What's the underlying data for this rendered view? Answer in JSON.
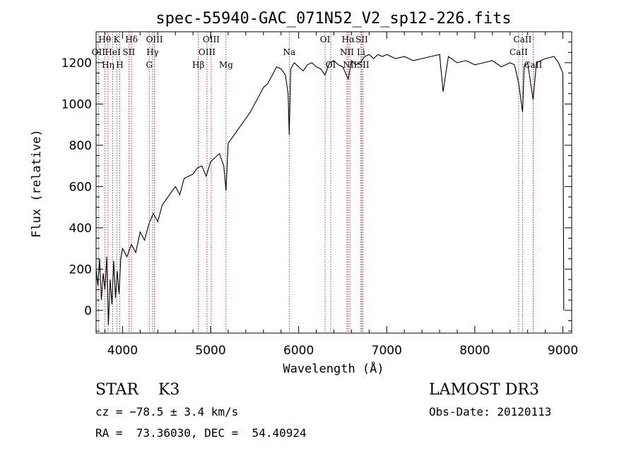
{
  "chart_data": {
    "type": "line",
    "title": "spec-55940-GAC_071N52_V2_sp12-226.fits",
    "xlabel": "Wavelength (Å)",
    "ylabel": "Flux (relative)",
    "xlim": [
      3700,
      9100
    ],
    "ylim": [
      -110,
      1350
    ],
    "xticks": [
      4000,
      5000,
      6000,
      7000,
      8000,
      9000
    ],
    "yticks": [
      0,
      200,
      400,
      600,
      800,
      1000,
      1200
    ],
    "series": [
      {
        "name": "flux",
        "x": [
          3700,
          3720,
          3740,
          3760,
          3780,
          3800,
          3820,
          3840,
          3860,
          3880,
          3900,
          3920,
          3940,
          3960,
          3980,
          4000,
          4050,
          4100,
          4150,
          4200,
          4250,
          4300,
          4350,
          4400,
          4450,
          4500,
          4550,
          4600,
          4650,
          4700,
          4750,
          4800,
          4850,
          4900,
          4950,
          5000,
          5050,
          5100,
          5150,
          5175,
          5200,
          5250,
          5300,
          5350,
          5400,
          5450,
          5500,
          5550,
          5600,
          5650,
          5700,
          5750,
          5800,
          5850,
          5880,
          5893,
          5910,
          5950,
          6000,
          6050,
          6100,
          6150,
          6200,
          6250,
          6300,
          6350,
          6400,
          6450,
          6500,
          6563,
          6600,
          6650,
          6700,
          6750,
          6800,
          6850,
          6900,
          6950,
          7000,
          7100,
          7200,
          7300,
          7400,
          7500,
          7600,
          7640,
          7700,
          7800,
          7900,
          8000,
          8100,
          8200,
          8300,
          8400,
          8450,
          8498,
          8542,
          8560,
          8600,
          8662,
          8700,
          8800,
          8900,
          8950,
          9000,
          9010
        ],
        "values": [
          200,
          120,
          250,
          50,
          180,
          100,
          260,
          -70,
          150,
          30,
          240,
          60,
          190,
          80,
          250,
          300,
          260,
          320,
          280,
          380,
          340,
          420,
          470,
          430,
          510,
          540,
          570,
          600,
          560,
          640,
          650,
          660,
          690,
          700,
          650,
          720,
          740,
          760,
          700,
          580,
          810,
          840,
          870,
          900,
          930,
          960,
          1000,
          1040,
          1080,
          1100,
          1140,
          1180,
          1170,
          1140,
          1050,
          850,
          1170,
          1200,
          1180,
          1160,
          1190,
          1200,
          1180,
          1170,
          1140,
          1200,
          1210,
          1190,
          1180,
          1120,
          1210,
          1190,
          1200,
          1230,
          1240,
          1220,
          1240,
          1230,
          1240,
          1220,
          1230,
          1210,
          1220,
          1230,
          1240,
          1060,
          1230,
          1200,
          1210,
          1190,
          1200,
          1210,
          1180,
          1200,
          1190,
          1100,
          960,
          1180,
          1200,
          1020,
          1200,
          1220,
          1230,
          1200,
          1150,
          0
        ]
      }
    ],
    "lines": [
      {
        "label": "Hθ",
        "wavelength": 3798,
        "row": 0
      },
      {
        "label": "OII",
        "wavelength": 3727,
        "row": 1
      },
      {
        "label": "Hη",
        "wavelength": 3835,
        "row": 2
      },
      {
        "label": "K",
        "wavelength": 3934,
        "row": 0
      },
      {
        "label": "HeI",
        "wavelength": 3889,
        "row": 1
      },
      {
        "label": "H",
        "wavelength": 3969,
        "row": 2
      },
      {
        "label": "Hδ",
        "wavelength": 4102,
        "row": 0
      },
      {
        "label": "SII",
        "wavelength": 4072,
        "row": 1
      },
      {
        "label": "OIII",
        "wavelength": 4363,
        "row": 0
      },
      {
        "label": "Hγ",
        "wavelength": 4341,
        "row": 1
      },
      {
        "label": "G",
        "wavelength": 4304,
        "row": 2
      },
      {
        "label": "OIII",
        "wavelength": 5007,
        "row": 0
      },
      {
        "label": "OIII",
        "wavelength": 4959,
        "row": 1
      },
      {
        "label": "Hβ",
        "wavelength": 4861,
        "row": 2
      },
      {
        "label": "Mg",
        "wavelength": 5175,
        "row": 2
      },
      {
        "label": "Na",
        "wavelength": 5893,
        "row": 1
      },
      {
        "label": "OI",
        "wavelength": 6300,
        "row": 0
      },
      {
        "label": "OI",
        "wavelength": 6364,
        "row": 2
      },
      {
        "label": "Hα",
        "wavelength": 6563,
        "row": 0
      },
      {
        "label": "SII",
        "wavelength": 6716,
        "row": 0
      },
      {
        "label": "NII",
        "wavelength": 6548,
        "row": 1
      },
      {
        "label": "Li",
        "wavelength": 6708,
        "row": 1
      },
      {
        "label": "NII",
        "wavelength": 6583,
        "row": 2
      },
      {
        "label": "SII",
        "wavelength": 6731,
        "row": 2
      },
      {
        "label": "CaII",
        "wavelength": 8542,
        "row": 0
      },
      {
        "label": "CaII",
        "wavelength": 8498,
        "row": 1
      },
      {
        "label": "CaII",
        "wavelength": 8662,
        "row": 2
      }
    ]
  },
  "info": {
    "class_line": "STAR    K3",
    "survey": "LAMOST DR3",
    "cz": "cz = −78.5 ± 3.4 km/s",
    "obs_date": "Obs-Date: 20120113",
    "coords": "RA =  73.36030, DEC =  54.40924"
  }
}
